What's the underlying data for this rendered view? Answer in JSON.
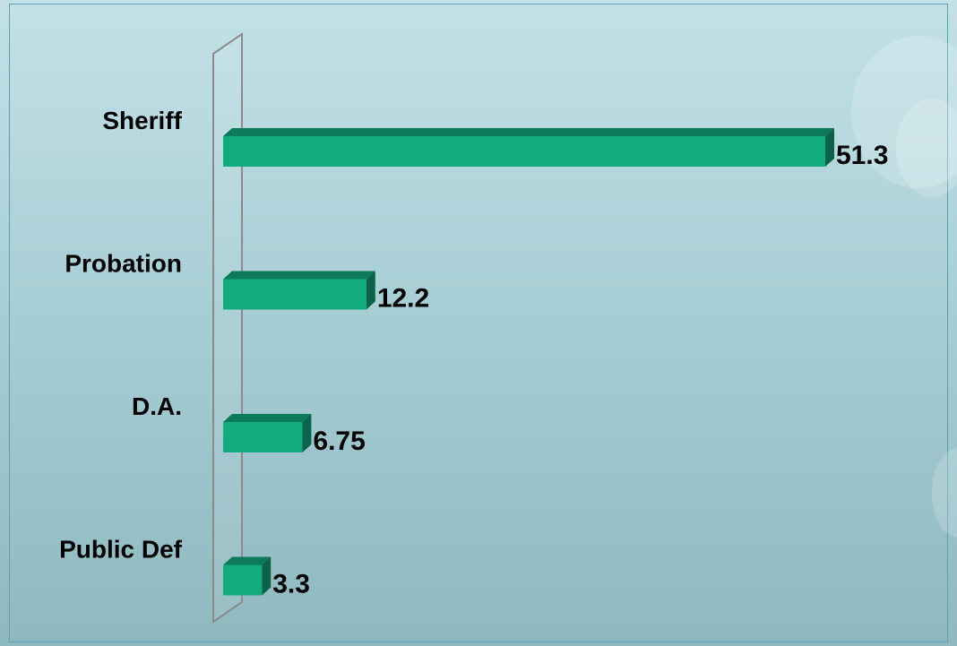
{
  "chart_data": {
    "type": "bar",
    "orientation": "horizontal",
    "style": "3d",
    "categories": [
      "Sheriff",
      "Probation",
      "D.A.",
      "Public Def"
    ],
    "values": [
      51.3,
      12.2,
      6.75,
      3.3
    ],
    "value_labels": [
      "51.3",
      "12.2",
      "6.75",
      "3.3"
    ],
    "title": "",
    "xlabel": "",
    "ylabel": "",
    "xlim": [
      0,
      51.3
    ],
    "grid": false,
    "legend": "none",
    "colors": {
      "bar_front": "#12ab7e",
      "bar_top": "#0d7a5a",
      "bar_side": "#0a6349",
      "wall_stroke": "#8a8a8a",
      "background_top": "#c3e1e7",
      "background_bottom": "#8fb8bf"
    }
  }
}
